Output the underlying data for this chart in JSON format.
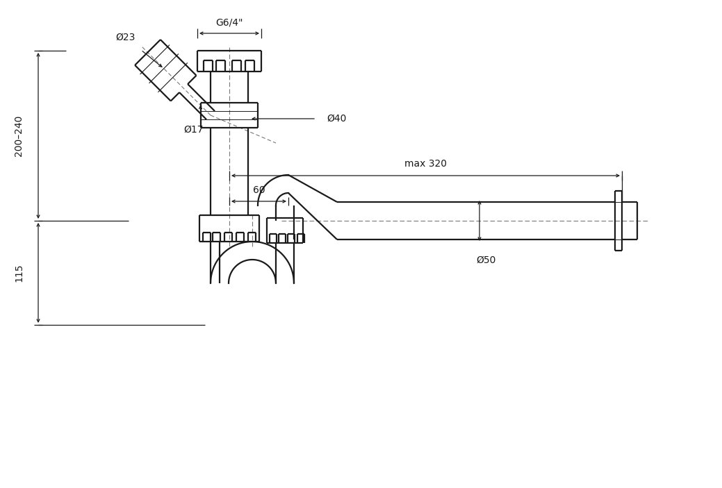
{
  "line_color": "#1a1a1a",
  "dim_color": "#1a1a1a",
  "dash_color": "#777777",
  "labels": {
    "G64": "G6/4\"",
    "d40": "Ø40",
    "d23": "Ø23",
    "d17": "Ø17",
    "d50": "Ø50",
    "max320": "max 320",
    "dim60": "60",
    "dim200_240": "200–240",
    "dim115": "115"
  },
  "lw_main": 1.6,
  "lw_dim": 0.9,
  "lw_dash": 0.8
}
